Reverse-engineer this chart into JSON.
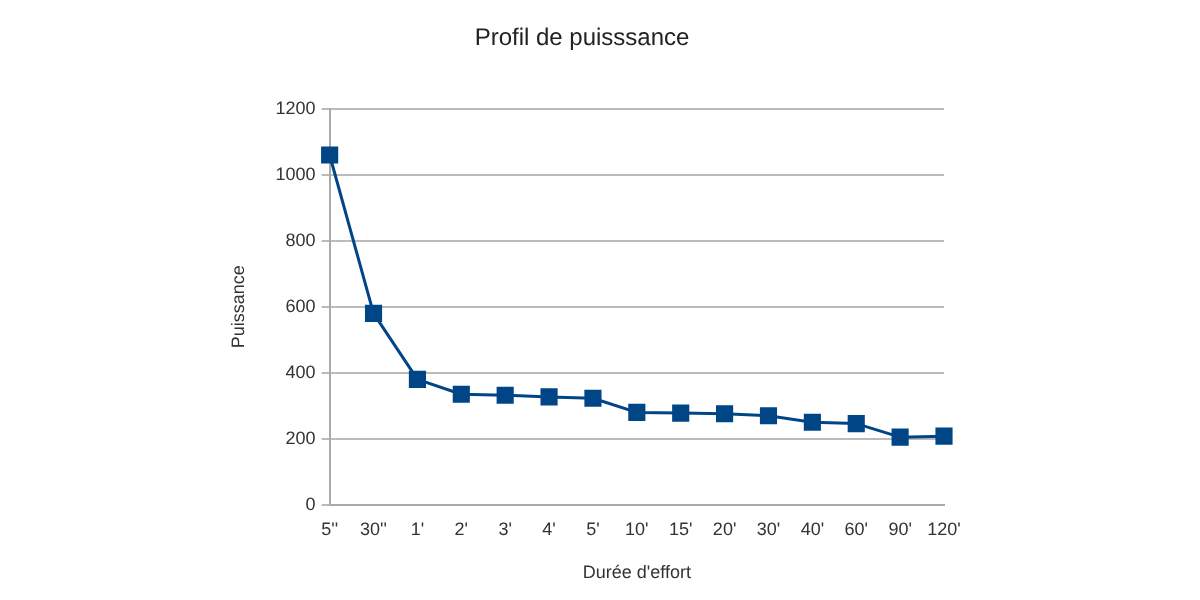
{
  "chart_data": {
    "type": "line",
    "title": "Profil de puisssance",
    "xlabel": "Durée d'effort",
    "ylabel": "Puissance",
    "categories": [
      "5''",
      "30''",
      "1'",
      "2'",
      "3'",
      "4'",
      "5'",
      "10'",
      "15'",
      "20'",
      "30'",
      "40'",
      "60'",
      "90'",
      "120'"
    ],
    "series": [
      {
        "color": "#004586",
        "values": [
          1060,
          580,
          380,
          335,
          332,
          327,
          323,
          280,
          278,
          276,
          270,
          250,
          246,
          205,
          208
        ]
      }
    ],
    "ylim": [
      0,
      1200
    ],
    "yticks": [
      0,
      200,
      400,
      600,
      800,
      1000,
      1200
    ],
    "grid": "y",
    "marker": "square",
    "line_style": "solid",
    "legend": false
  }
}
